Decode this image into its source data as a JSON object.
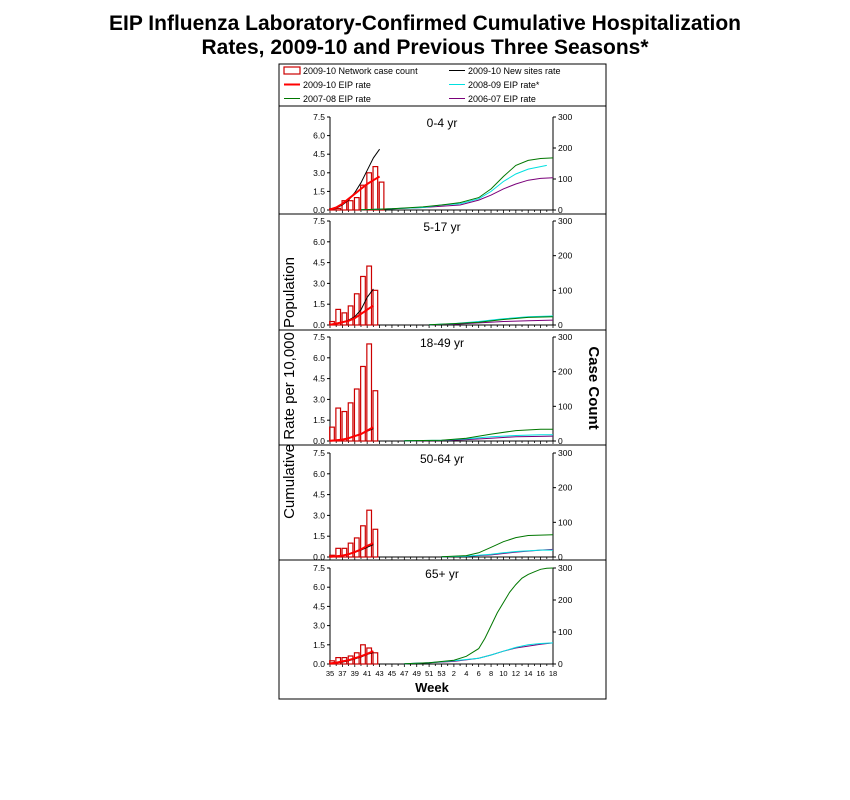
{
  "title_lines": [
    "EIP Influenza Laboratory-Confirmed Cumulative Hospitalization",
    "Rates, 2009-10 and Previous Three Seasons*"
  ],
  "chart_data": {
    "type": "bar+line",
    "left_axis_label": "Cumulative Rate per 10,000 Population",
    "right_axis_label": "Case  Count",
    "x_axis_label": "Week",
    "x_tick_labels": [
      "35",
      "37",
      "39",
      "41",
      "43",
      "45",
      "47",
      "49",
      "51",
      "53",
      "2",
      "4",
      "6",
      "8",
      "10",
      "12",
      "14",
      "16",
      "18"
    ],
    "y_left_ticks": [
      "0.0",
      "1.5",
      "3.0",
      "4.5",
      "6.0",
      "7.5"
    ],
    "y_right_ticks": [
      "0",
      "100",
      "200",
      "300"
    ],
    "ylim_left": [
      0,
      7.5
    ],
    "ylim_right": [
      0,
      300
    ],
    "week_index_range": [
      0,
      36
    ],
    "legend": [
      {
        "label": "2009-10 Network case count",
        "kind": "bar",
        "color": "#cc0000"
      },
      {
        "label": "2009-10 New sites rate",
        "kind": "line",
        "color": "#000000"
      },
      {
        "label": "2009-10 EIP rate",
        "kind": "line",
        "color": "#ff0000"
      },
      {
        "label": "2008-09 EIP rate*",
        "kind": "line",
        "color": "#00e0e0"
      },
      {
        "label": "2007-08 EIP rate",
        "kind": "line",
        "color": "#007700"
      },
      {
        "label": "2006-07 EIP rate",
        "kind": "line",
        "color": "#7a007a"
      }
    ],
    "panels": [
      {
        "label": "0-4 yr",
        "bars": [
          [
            0,
            4
          ],
          [
            1,
            5
          ],
          [
            2,
            30
          ],
          [
            3,
            30
          ],
          [
            4,
            40
          ],
          [
            5,
            80
          ],
          [
            6,
            120
          ],
          [
            7,
            140
          ],
          [
            8,
            90
          ]
        ],
        "lines": {
          "new_sites": [
            [
              0,
              0.05
            ],
            [
              1,
              0.15
            ],
            [
              2,
              0.4
            ],
            [
              3,
              0.8
            ],
            [
              4,
              1.4
            ],
            [
              5,
              2.2
            ],
            [
              6,
              3.2
            ],
            [
              7,
              4.2
            ],
            [
              8,
              4.9
            ]
          ],
          "eip_2009": [
            [
              0,
              0.05
            ],
            [
              1,
              0.2
            ],
            [
              2,
              0.5
            ],
            [
              3,
              0.9
            ],
            [
              4,
              1.3
            ],
            [
              5,
              1.7
            ],
            [
              6,
              2.1
            ],
            [
              7,
              2.4
            ],
            [
              8,
              2.7
            ]
          ],
          "eip_2008": [
            [
              5,
              0.02
            ],
            [
              10,
              0.1
            ],
            [
              15,
              0.2
            ],
            [
              18,
              0.4
            ],
            [
              21,
              0.5
            ],
            [
              24,
              0.9
            ],
            [
              26,
              1.5
            ],
            [
              28,
              2.3
            ],
            [
              30,
              2.9
            ],
            [
              32,
              3.3
            ],
            [
              34,
              3.5
            ],
            [
              35,
              3.6
            ]
          ],
          "eip_2007": [
            [
              5,
              0.02
            ],
            [
              10,
              0.1
            ],
            [
              15,
              0.25
            ],
            [
              18,
              0.4
            ],
            [
              21,
              0.6
            ],
            [
              24,
              1.0
            ],
            [
              26,
              1.7
            ],
            [
              28,
              2.7
            ],
            [
              30,
              3.6
            ],
            [
              32,
              4.0
            ],
            [
              34,
              4.15
            ],
            [
              36,
              4.2
            ]
          ],
          "eip_2006": [
            [
              5,
              0.02
            ],
            [
              10,
              0.1
            ],
            [
              15,
              0.2
            ],
            [
              18,
              0.3
            ],
            [
              21,
              0.4
            ],
            [
              24,
              0.8
            ],
            [
              26,
              1.2
            ],
            [
              28,
              1.7
            ],
            [
              30,
              2.1
            ],
            [
              32,
              2.4
            ],
            [
              34,
              2.55
            ],
            [
              36,
              2.6
            ]
          ]
        }
      },
      {
        "label": "5-17 yr",
        "bars": [
          [
            0,
            10
          ],
          [
            1,
            45
          ],
          [
            2,
            35
          ],
          [
            3,
            55
          ],
          [
            4,
            90
          ],
          [
            5,
            140
          ],
          [
            6,
            170
          ],
          [
            7,
            100
          ]
        ],
        "lines": {
          "new_sites": [
            [
              0,
              0.05
            ],
            [
              1,
              0.1
            ],
            [
              2,
              0.2
            ],
            [
              3,
              0.35
            ],
            [
              4,
              0.6
            ],
            [
              5,
              1.1
            ],
            [
              6,
              2.0
            ],
            [
              7,
              2.6
            ]
          ],
          "eip_2009": [
            [
              0,
              0.02
            ],
            [
              1,
              0.1
            ],
            [
              2,
              0.2
            ],
            [
              3,
              0.3
            ],
            [
              4,
              0.5
            ],
            [
              5,
              0.8
            ],
            [
              6,
              1.1
            ],
            [
              7,
              1.4
            ]
          ],
          "eip_2008": [
            [
              16,
              0.02
            ],
            [
              20,
              0.1
            ],
            [
              24,
              0.25
            ],
            [
              28,
              0.45
            ],
            [
              32,
              0.6
            ],
            [
              36,
              0.65
            ]
          ],
          "eip_2007": [
            [
              16,
              0.02
            ],
            [
              20,
              0.1
            ],
            [
              24,
              0.2
            ],
            [
              28,
              0.4
            ],
            [
              32,
              0.55
            ],
            [
              36,
              0.6
            ]
          ],
          "eip_2006": [
            [
              16,
              0.02
            ],
            [
              20,
              0.05
            ],
            [
              24,
              0.15
            ],
            [
              28,
              0.25
            ],
            [
              32,
              0.3
            ],
            [
              36,
              0.35
            ]
          ]
        }
      },
      {
        "label": "18-49 yr",
        "bars": [
          [
            0,
            40
          ],
          [
            1,
            95
          ],
          [
            2,
            85
          ],
          [
            3,
            110
          ],
          [
            4,
            150
          ],
          [
            5,
            215
          ],
          [
            6,
            280
          ],
          [
            7,
            145
          ]
        ],
        "lines": {
          "new_sites": [
            [
              0,
              0.02
            ],
            [
              1,
              0.05
            ],
            [
              2,
              0.1
            ],
            [
              3,
              0.2
            ],
            [
              4,
              0.35
            ],
            [
              5,
              0.5
            ],
            [
              6,
              0.7
            ],
            [
              7,
              0.9
            ]
          ],
          "eip_2009": [
            [
              0,
              0.02
            ],
            [
              1,
              0.05
            ],
            [
              2,
              0.1
            ],
            [
              3,
              0.2
            ],
            [
              4,
              0.35
            ],
            [
              5,
              0.5
            ],
            [
              6,
              0.75
            ],
            [
              7,
              1.0
            ]
          ],
          "eip_2008": [
            [
              12,
              0.02
            ],
            [
              18,
              0.05
            ],
            [
              22,
              0.15
            ],
            [
              26,
              0.3
            ],
            [
              30,
              0.4
            ],
            [
              34,
              0.45
            ],
            [
              36,
              0.45
            ]
          ],
          "eip_2007": [
            [
              12,
              0.02
            ],
            [
              18,
              0.05
            ],
            [
              22,
              0.2
            ],
            [
              26,
              0.5
            ],
            [
              30,
              0.75
            ],
            [
              34,
              0.85
            ],
            [
              36,
              0.85
            ]
          ],
          "eip_2006": [
            [
              12,
              0.02
            ],
            [
              18,
              0.03
            ],
            [
              22,
              0.1
            ],
            [
              26,
              0.2
            ],
            [
              30,
              0.3
            ],
            [
              34,
              0.33
            ],
            [
              36,
              0.35
            ]
          ]
        }
      },
      {
        "label": "50-64 yr",
        "bars": [
          [
            0,
            5
          ],
          [
            1,
            25
          ],
          [
            2,
            25
          ],
          [
            3,
            40
          ],
          [
            4,
            55
          ],
          [
            5,
            90
          ],
          [
            6,
            135
          ],
          [
            7,
            80
          ]
        ],
        "lines": {
          "new_sites": [
            [
              0,
              0.02
            ],
            [
              1,
              0.05
            ],
            [
              2,
              0.1
            ],
            [
              3,
              0.2
            ],
            [
              4,
              0.35
            ],
            [
              5,
              0.5
            ],
            [
              6,
              0.7
            ],
            [
              7,
              0.9
            ]
          ],
          "eip_2009": [
            [
              0,
              0.02
            ],
            [
              1,
              0.05
            ],
            [
              2,
              0.1
            ],
            [
              3,
              0.2
            ],
            [
              4,
              0.35
            ],
            [
              5,
              0.55
            ],
            [
              6,
              0.8
            ],
            [
              7,
              1.0
            ]
          ],
          "eip_2008": [
            [
              18,
              0.02
            ],
            [
              22,
              0.05
            ],
            [
              26,
              0.2
            ],
            [
              28,
              0.3
            ],
            [
              30,
              0.4
            ],
            [
              34,
              0.5
            ],
            [
              36,
              0.5
            ]
          ],
          "eip_2007": [
            [
              18,
              0.02
            ],
            [
              22,
              0.1
            ],
            [
              24,
              0.3
            ],
            [
              26,
              0.7
            ],
            [
              28,
              1.1
            ],
            [
              30,
              1.4
            ],
            [
              32,
              1.55
            ],
            [
              36,
              1.6
            ]
          ],
          "eip_2006": [
            [
              18,
              0.02
            ],
            [
              22,
              0.05
            ],
            [
              26,
              0.15
            ],
            [
              28,
              0.25
            ],
            [
              30,
              0.35
            ],
            [
              34,
              0.5
            ],
            [
              36,
              0.55
            ]
          ]
        }
      },
      {
        "label": "65+ yr",
        "bars": [
          [
            0,
            10
          ],
          [
            1,
            20
          ],
          [
            2,
            20
          ],
          [
            3,
            25
          ],
          [
            4,
            35
          ],
          [
            5,
            60
          ],
          [
            6,
            50
          ],
          [
            7,
            35
          ]
        ],
        "lines": {
          "new_sites": [
            [
              0,
              0.05
            ],
            [
              1,
              0.1
            ],
            [
              2,
              0.15
            ],
            [
              3,
              0.25
            ],
            [
              4,
              0.4
            ],
            [
              5,
              0.55
            ],
            [
              6,
              0.75
            ],
            [
              7,
              0.9
            ]
          ],
          "eip_2009": [
            [
              0,
              0.05
            ],
            [
              1,
              0.1
            ],
            [
              2,
              0.2
            ],
            [
              3,
              0.3
            ],
            [
              4,
              0.45
            ],
            [
              5,
              0.6
            ],
            [
              6,
              0.8
            ],
            [
              7,
              1.0
            ]
          ],
          "eip_2008": [
            [
              12,
              0.02
            ],
            [
              16,
              0.1
            ],
            [
              20,
              0.25
            ],
            [
              24,
              0.45
            ],
            [
              26,
              0.7
            ],
            [
              28,
              1.0
            ],
            [
              30,
              1.3
            ],
            [
              32,
              1.5
            ],
            [
              34,
              1.6
            ],
            [
              36,
              1.65
            ]
          ],
          "eip_2007": [
            [
              12,
              0.02
            ],
            [
              16,
              0.1
            ],
            [
              20,
              0.3
            ],
            [
              22,
              0.6
            ],
            [
              24,
              1.2
            ],
            [
              25,
              2.0
            ],
            [
              26,
              3.0
            ],
            [
              27,
              4.0
            ],
            [
              28,
              4.8
            ],
            [
              29,
              5.6
            ],
            [
              30,
              6.2
            ],
            [
              31,
              6.7
            ],
            [
              32,
              7.0
            ],
            [
              33,
              7.2
            ],
            [
              34,
              7.4
            ],
            [
              35,
              7.48
            ],
            [
              36,
              7.5
            ]
          ],
          "eip_2006": [
            [
              12,
              0.02
            ],
            [
              16,
              0.1
            ],
            [
              20,
              0.2
            ],
            [
              24,
              0.45
            ],
            [
              26,
              0.7
            ],
            [
              28,
              1.0
            ],
            [
              30,
              1.25
            ],
            [
              32,
              1.4
            ],
            [
              34,
              1.55
            ],
            [
              36,
              1.65
            ]
          ]
        }
      }
    ]
  }
}
